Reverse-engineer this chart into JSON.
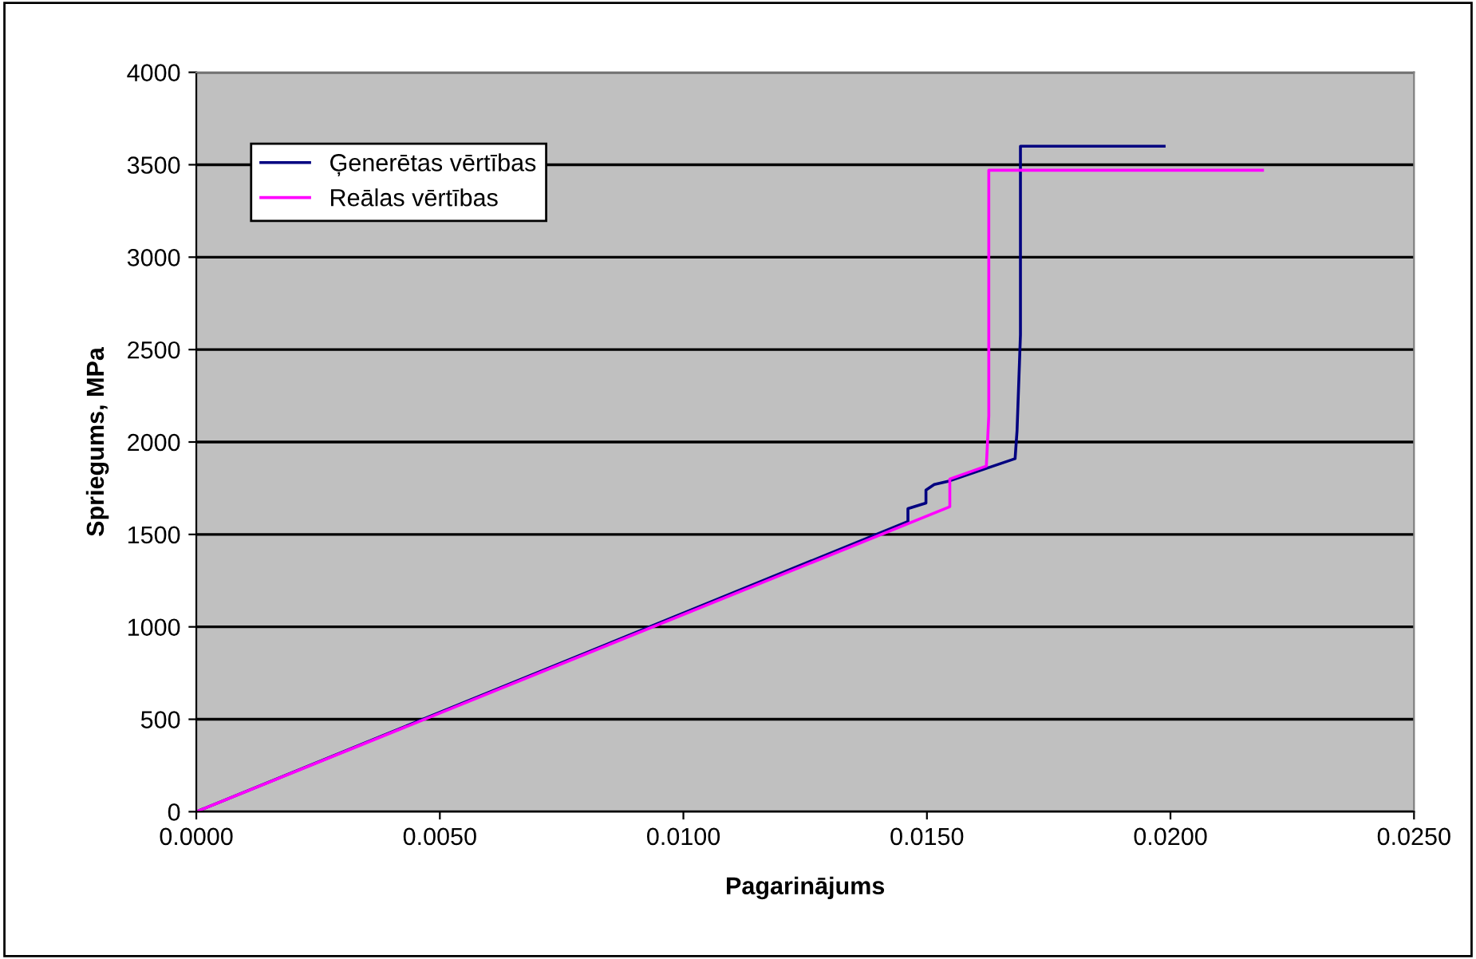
{
  "chart_data": {
    "type": "line",
    "xlabel": "Pagarinājums",
    "ylabel": "Spriegums, MPa",
    "xlim": [
      0,
      0.025
    ],
    "xticks": [
      {
        "value": 0,
        "label": "0.0000"
      },
      {
        "value": 0.005,
        "label": "0.0050"
      },
      {
        "value": 0.01,
        "label": "0.0100"
      },
      {
        "value": 0.015,
        "label": "0.0150"
      },
      {
        "value": 0.02,
        "label": "0.0200"
      },
      {
        "value": 0.025,
        "label": "0.0250"
      }
    ],
    "ylim": [
      0,
      4000
    ],
    "yticks": [
      0,
      500,
      1000,
      1500,
      2000,
      2500,
      3000,
      3500,
      4000
    ],
    "grid": "y",
    "legend": "top left",
    "marker": "none",
    "line_style": "solid",
    "series": [
      {
        "name": "Ģenerētas vērtības",
        "color": "#000080",
        "x": [
          0,
          0.01461,
          0.01461,
          0.01498,
          0.01498,
          0.01515,
          0.01547,
          0.01681,
          0.01685,
          0.0169,
          0.01692,
          0.01692,
          0.01987
        ],
        "values": [
          0,
          1570,
          1640,
          1670,
          1740,
          1770,
          1790,
          1910,
          2060,
          2430,
          2580,
          3600,
          3600
        ]
      },
      {
        "name": "Reālas vērtības",
        "color": "#ff00ff",
        "x": [
          0,
          0.01547,
          0.01547,
          0.01622,
          0.01627,
          0.01627,
          0.02189
        ],
        "values": [
          0,
          1650,
          1800,
          1870,
          2140,
          3470,
          3470
        ]
      }
    ]
  }
}
